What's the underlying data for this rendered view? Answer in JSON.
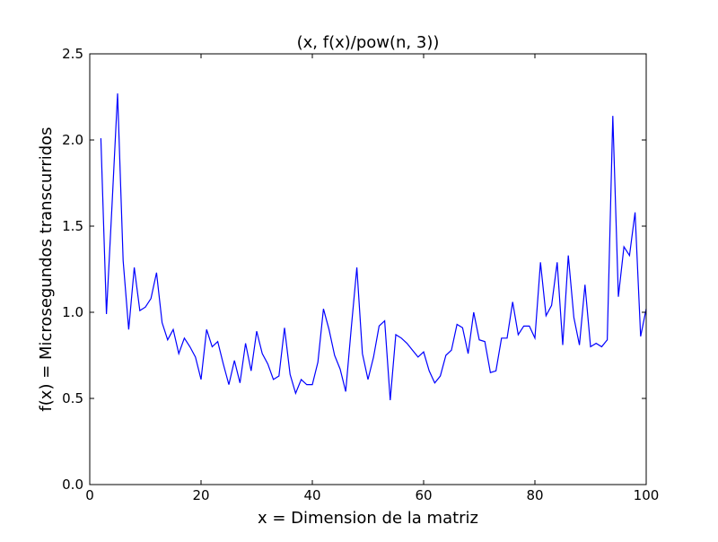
{
  "chart_data": {
    "type": "line",
    "title": "(x, f(x)/pow(n, 3))",
    "xlabel": "x = Dimension de la matriz",
    "ylabel": "f(x) = Microsegundos transcurridos",
    "xlim": [
      0,
      100
    ],
    "ylim": [
      0,
      2.5
    ],
    "xticks": [
      0,
      20,
      40,
      60,
      80,
      100
    ],
    "xtick_labels": [
      "0",
      "20",
      "40",
      "60",
      "80",
      "100"
    ],
    "yticks": [
      0,
      0.5,
      1,
      1.5,
      2,
      2.5
    ],
    "ytick_labels": [
      "0.0",
      "0.5",
      "1.0",
      "1.5",
      "2.0",
      "2.5"
    ],
    "grid": false,
    "series": [
      {
        "color": "#0000ff",
        "x": [
          2,
          3,
          4,
          5,
          6,
          7,
          8,
          9,
          10,
          11,
          12,
          13,
          14,
          15,
          16,
          17,
          18,
          19,
          20,
          21,
          22,
          23,
          24,
          25,
          26,
          27,
          28,
          29,
          30,
          31,
          32,
          33,
          34,
          35,
          36,
          37,
          38,
          39,
          40,
          41,
          42,
          43,
          44,
          45,
          46,
          47,
          48,
          49,
          50,
          51,
          52,
          53,
          54,
          55,
          56,
          57,
          58,
          59,
          60,
          61,
          62,
          63,
          64,
          65,
          66,
          67,
          68,
          69,
          70,
          71,
          72,
          73,
          74,
          75,
          76,
          77,
          78,
          79,
          80,
          81,
          82,
          83,
          84,
          85,
          86,
          87,
          88,
          89,
          90,
          91,
          92,
          93,
          94,
          95,
          96,
          97,
          98,
          99,
          100
        ],
        "y": [
          2.01,
          0.99,
          1.62,
          2.27,
          1.3,
          0.9,
          1.26,
          1.01,
          1.03,
          1.08,
          1.23,
          0.94,
          0.84,
          0.9,
          0.76,
          0.85,
          0.8,
          0.74,
          0.61,
          0.9,
          0.8,
          0.83,
          0.7,
          0.58,
          0.72,
          0.59,
          0.82,
          0.66,
          0.89,
          0.76,
          0.7,
          0.61,
          0.63,
          0.91,
          0.64,
          0.53,
          0.61,
          0.58,
          0.58,
          0.71,
          1.02,
          0.9,
          0.75,
          0.67,
          0.54,
          0.91,
          1.26,
          0.76,
          0.61,
          0.74,
          0.92,
          0.95,
          0.49,
          0.87,
          0.85,
          0.82,
          0.78,
          0.74,
          0.77,
          0.66,
          0.59,
          0.63,
          0.75,
          0.78,
          0.93,
          0.91,
          0.76,
          1.0,
          0.84,
          0.83,
          0.65,
          0.66,
          0.85,
          0.85,
          1.06,
          0.87,
          0.92,
          0.92,
          0.85,
          1.29,
          0.98,
          1.04,
          1.29,
          0.81,
          1.33,
          0.97,
          0.81,
          1.16,
          0.8,
          0.82,
          0.8,
          0.84,
          2.14,
          1.09,
          1.38,
          1.33,
          1.58,
          0.86,
          1.02
        ]
      }
    ]
  }
}
